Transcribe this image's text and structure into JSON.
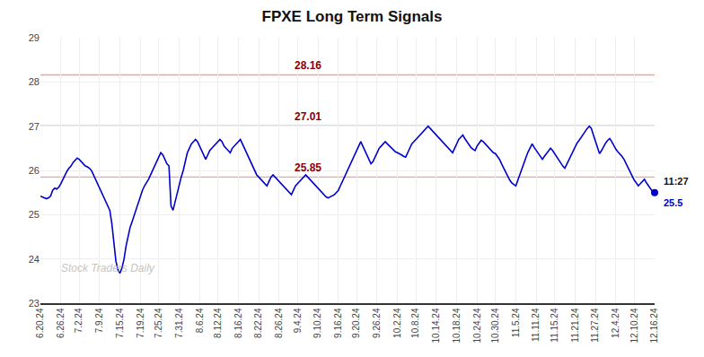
{
  "chart_data": {
    "type": "line",
    "title": "FPXE Long Term Signals",
    "color": "#0000cc",
    "grid": true,
    "ylim": [
      23,
      29
    ],
    "yticks": [
      23,
      24,
      25,
      26,
      27,
      28,
      29
    ],
    "reference_lines": [
      {
        "value": 28.16,
        "label": "28.16",
        "color": "#f4a0a0",
        "label_color": "#8b0000"
      },
      {
        "value": 27.01,
        "label": "27.01",
        "color": "#f4a0a0",
        "label_color": "#8b0000"
      },
      {
        "value": 25.85,
        "label": "25.85",
        "color": "#f4a0a0",
        "label_color": "#8b0000"
      }
    ],
    "end_labels": [
      "11:27",
      "25.5"
    ],
    "watermark": "Stock Traders Daily",
    "categories": [
      "6.20.24",
      null,
      null,
      null,
      null,
      null,
      null,
      null,
      null,
      null,
      "6.26.24",
      null,
      null,
      null,
      null,
      null,
      null,
      null,
      null,
      "7.2.24",
      null,
      null,
      null,
      null,
      null,
      null,
      null,
      null,
      null,
      "7.9.24",
      null,
      null,
      null,
      null,
      null,
      null,
      null,
      null,
      null,
      "7.15.24",
      null,
      null,
      null,
      null,
      null,
      null,
      null,
      null,
      null,
      "7.19.24",
      null,
      null,
      null,
      null,
      null,
      null,
      null,
      null,
      "7.25.24",
      null,
      null,
      null,
      null,
      null,
      null,
      null,
      null,
      null,
      "7.31.24",
      null,
      null,
      null,
      null,
      null,
      null,
      null,
      null,
      null,
      "8.6.24",
      null,
      null,
      null,
      null,
      null,
      null,
      null,
      null,
      "8.12.24",
      null,
      null,
      null,
      null,
      null,
      null,
      null,
      null,
      null,
      "8.16.24",
      null,
      null,
      null,
      null,
      null,
      null,
      null,
      null,
      null,
      "8.22.24",
      null,
      null,
      null,
      null,
      null,
      null,
      null,
      null,
      null,
      "8.26.24",
      null,
      null,
      null,
      null,
      null,
      null,
      null,
      null,
      "9.4.24",
      null,
      null,
      null,
      null,
      null,
      null,
      null,
      null,
      null,
      "9.10.24",
      null,
      null,
      null,
      null,
      null,
      null,
      null,
      null,
      null,
      "9.16.24",
      null,
      null,
      null,
      null,
      null,
      null,
      null,
      null,
      "9.20.24",
      null,
      null,
      null,
      null,
      null,
      null,
      null,
      null,
      null,
      "9.26.24",
      null,
      null,
      null,
      null,
      null,
      null,
      null,
      null,
      null,
      "10.2.24",
      null,
      null,
      null,
      null,
      null,
      null,
      null,
      null,
      "10.8.24",
      null,
      null,
      null,
      null,
      null,
      null,
      null,
      null,
      null,
      "10.14.24",
      null,
      null,
      null,
      null,
      null,
      null,
      null,
      null,
      null,
      "10.18.24",
      null,
      null,
      null,
      null,
      null,
      null,
      null,
      null,
      null,
      "10.24.24",
      null,
      null,
      null,
      null,
      null,
      null,
      null,
      null,
      "10.30.24",
      null,
      null,
      null,
      null,
      null,
      null,
      null,
      null,
      null,
      "11.5.24",
      null,
      null,
      null,
      null,
      null,
      null,
      null,
      null,
      null,
      "11.11.24",
      null,
      null,
      null,
      null,
      null,
      null,
      null,
      null,
      "11.15.24",
      null,
      null,
      null,
      null,
      null,
      null,
      null,
      null,
      null,
      "11.21.24",
      null,
      null,
      null,
      null,
      null,
      null,
      null,
      null,
      null,
      "11.27.24",
      null,
      null,
      null,
      null,
      null,
      null,
      null,
      null,
      null,
      "12.4.24",
      null,
      null,
      null,
      null,
      null,
      null,
      null,
      null,
      "12.10.24",
      null,
      null,
      null,
      null,
      null,
      null,
      null,
      null,
      null,
      "12.16.24"
    ],
    "values": [
      25.42,
      25.4,
      25.38,
      25.36,
      25.38,
      25.42,
      25.55,
      25.6,
      25.58,
      25.62,
      25.7,
      25.8,
      25.9,
      25.98,
      26.05,
      26.1,
      26.18,
      26.22,
      26.28,
      26.25,
      26.2,
      26.15,
      26.1,
      26.08,
      26.05,
      26.0,
      25.9,
      25.8,
      25.7,
      25.6,
      25.5,
      25.4,
      25.3,
      25.2,
      25.1,
      24.8,
      24.4,
      23.95,
      23.75,
      23.68,
      23.8,
      24.0,
      24.3,
      24.55,
      24.72,
      24.85,
      25.0,
      25.15,
      25.3,
      25.45,
      25.55,
      25.65,
      25.72,
      25.8,
      25.9,
      26.0,
      26.1,
      26.2,
      26.3,
      26.4,
      26.35,
      26.25,
      26.15,
      26.1,
      25.2,
      25.1,
      25.3,
      25.5,
      25.7,
      25.85,
      26.0,
      26.2,
      26.4,
      26.5,
      26.6,
      26.65,
      26.7,
      26.65,
      26.55,
      26.45,
      26.35,
      26.25,
      26.35,
      26.45,
      26.5,
      26.55,
      26.6,
      26.65,
      26.7,
      26.65,
      26.55,
      26.5,
      26.45,
      26.4,
      26.5,
      26.55,
      26.6,
      26.65,
      26.7,
      26.6,
      26.5,
      26.4,
      26.3,
      26.2,
      26.1,
      26.0,
      25.9,
      25.85,
      25.8,
      25.75,
      25.7,
      25.65,
      25.75,
      25.85,
      25.9,
      25.85,
      25.8,
      25.75,
      25.7,
      25.65,
      25.6,
      25.55,
      25.5,
      25.45,
      25.55,
      25.65,
      25.7,
      25.75,
      25.8,
      25.85,
      25.9,
      25.85,
      25.8,
      25.75,
      25.7,
      25.65,
      25.6,
      25.55,
      25.5,
      25.45,
      25.4,
      25.38,
      25.4,
      25.42,
      25.45,
      25.5,
      25.55,
      25.65,
      25.75,
      25.85,
      25.95,
      26.05,
      26.15,
      26.25,
      26.35,
      26.45,
      26.55,
      26.65,
      26.55,
      26.45,
      26.35,
      26.25,
      26.15,
      26.2,
      26.3,
      26.4,
      26.5,
      26.55,
      26.6,
      26.65,
      26.6,
      26.55,
      26.5,
      26.45,
      26.42,
      26.4,
      26.38,
      26.35,
      26.32,
      26.3,
      26.4,
      26.5,
      26.6,
      26.65,
      26.7,
      26.75,
      26.8,
      26.85,
      26.9,
      26.95,
      27.0,
      26.95,
      26.9,
      26.85,
      26.8,
      26.75,
      26.7,
      26.65,
      26.6,
      26.55,
      26.5,
      26.45,
      26.4,
      26.5,
      26.6,
      26.7,
      26.75,
      26.8,
      26.72,
      26.65,
      26.58,
      26.52,
      26.48,
      26.45,
      26.55,
      26.62,
      26.68,
      26.65,
      26.6,
      26.55,
      26.5,
      26.45,
      26.4,
      26.38,
      26.32,
      26.25,
      26.15,
      26.05,
      25.95,
      25.85,
      25.78,
      25.72,
      25.68,
      25.65,
      25.78,
      25.92,
      26.05,
      26.18,
      26.3,
      26.42,
      26.52,
      26.6,
      26.52,
      26.45,
      26.38,
      26.32,
      26.25,
      26.32,
      26.38,
      26.45,
      26.5,
      26.45,
      26.38,
      26.3,
      26.22,
      26.15,
      26.1,
      26.05,
      26.15,
      26.25,
      26.35,
      26.45,
      26.55,
      26.62,
      26.68,
      26.75,
      26.82,
      26.9,
      26.95,
      27.0,
      26.95,
      26.8,
      26.65,
      26.5,
      26.38,
      26.45,
      26.55,
      26.62,
      26.68,
      26.72,
      26.65,
      26.55,
      26.48,
      26.42,
      26.38,
      26.32,
      26.25,
      26.15,
      26.05,
      25.95,
      25.85,
      25.78,
      25.72,
      25.65,
      25.7,
      25.75,
      25.8,
      25.72,
      25.65,
      25.58,
      25.52,
      25.5
    ]
  }
}
